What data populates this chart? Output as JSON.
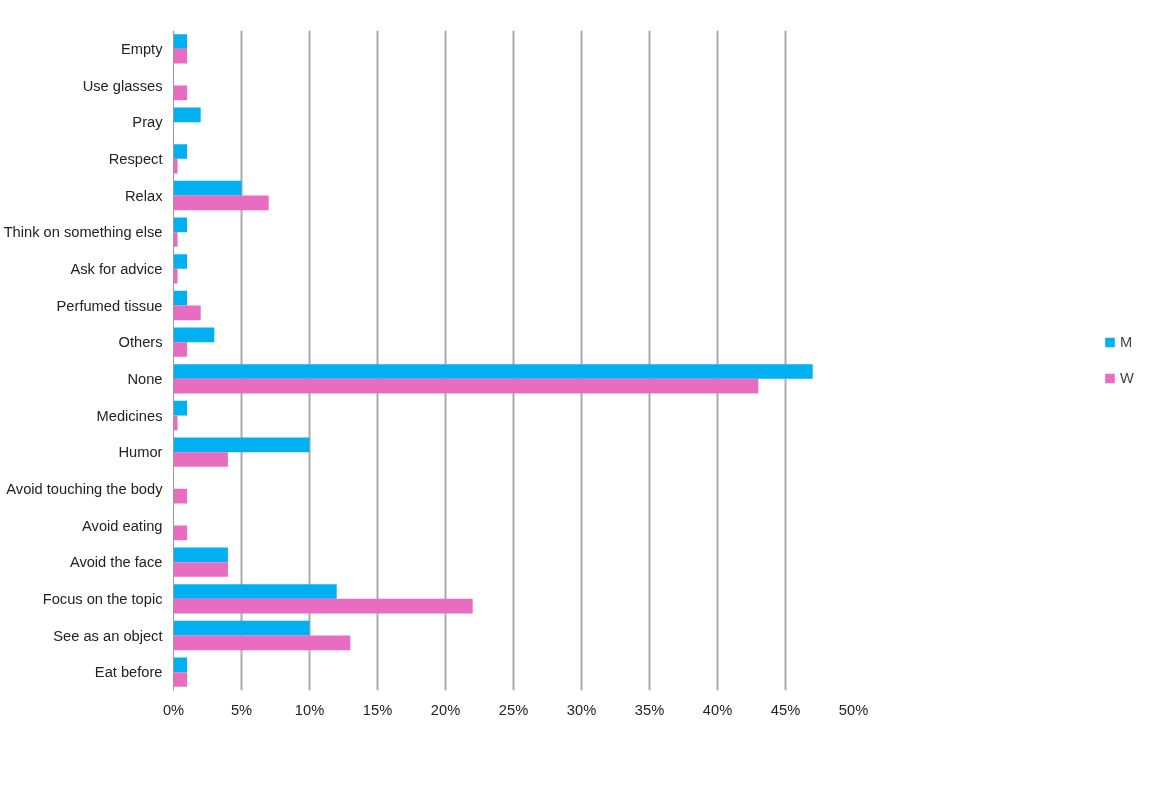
{
  "chart_data": {
    "type": "bar",
    "orientation": "horizontal",
    "categories": [
      "Empty",
      "Use glasses",
      "Pray",
      "Respect",
      "Relax",
      "Think on something else",
      "Ask for advice",
      "Perfumed tissue",
      "Others",
      "None",
      "Medicines",
      "Humor",
      "Avoid touching the body",
      "Avoid eating",
      "Avoid the face",
      "Focus on the topic",
      "See as an object",
      "Eat before"
    ],
    "series": [
      {
        "name": "M",
        "color": "#00b0f0",
        "values": [
          1,
          null,
          2,
          1,
          5,
          1,
          1,
          1,
          3,
          47,
          1,
          10,
          null,
          null,
          4,
          12,
          10,
          1
        ]
      },
      {
        "name": "W",
        "color": "#e86dc0",
        "values": [
          1,
          1,
          null,
          0.3,
          7,
          0.3,
          0.3,
          2,
          1,
          43,
          0.3,
          4,
          1,
          1,
          4,
          22,
          13,
          1
        ]
      }
    ],
    "xlim": [
      0,
      50
    ],
    "xticks": [
      {
        "value": 0,
        "label": "0%"
      },
      {
        "value": 5,
        "label": "5%"
      },
      {
        "value": 10,
        "label": "10%"
      },
      {
        "value": 15,
        "label": "15%"
      },
      {
        "value": 20,
        "label": "20%"
      },
      {
        "value": 25,
        "label": "25%"
      },
      {
        "value": 30,
        "label": "30%"
      },
      {
        "value": 35,
        "label": "35%"
      },
      {
        "value": 40,
        "label": "40%"
      },
      {
        "value": 45,
        "label": "45%"
      },
      {
        "value": 50,
        "label": "50%"
      }
    ],
    "grid": "x",
    "legend": "right"
  }
}
